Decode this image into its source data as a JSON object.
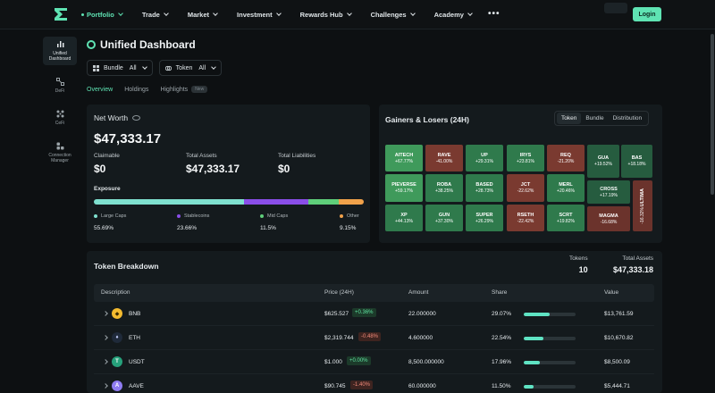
{
  "nav": {
    "items": [
      {
        "label": "Portfolio",
        "active": true
      },
      {
        "label": "Trade"
      },
      {
        "label": "Market"
      },
      {
        "label": "Investment"
      },
      {
        "label": "Rewards Hub"
      },
      {
        "label": "Challenges"
      },
      {
        "label": "Academy"
      }
    ],
    "login_label": "Login"
  },
  "sidebar": {
    "items": [
      {
        "label": "Unified Dashboard",
        "icon": "bar-chart-icon",
        "active": true
      },
      {
        "label": "DeFi",
        "icon": "defi-icon"
      },
      {
        "label": "CeFi",
        "icon": "cefi-icon"
      },
      {
        "label": "Connection Manager",
        "icon": "connection-icon"
      }
    ]
  },
  "header": {
    "title": "Unified Dashboard",
    "filters": {
      "bundle_label": "Bundle",
      "bundle_value": "All",
      "token_label": "Token",
      "token_value": "All"
    },
    "tabs": [
      "Overview",
      "Holdings",
      "Highlights"
    ],
    "highlights_badge": "New"
  },
  "net_worth": {
    "label": "Net Worth",
    "value": "$47,333.17",
    "claimable_label": "Claimable",
    "claimable": "$0",
    "total_assets_label": "Total Assets",
    "total_assets": "$47,333.17",
    "total_liabilities_label": "Total Liabilities",
    "total_liabilities": "$0",
    "exposure_label": "Exposure",
    "exposure": [
      {
        "label": "Large Caps",
        "pct": "55.69%",
        "value": 55.69,
        "color": "#7fe0cf"
      },
      {
        "label": "Stablecoins",
        "pct": "23.66%",
        "value": 23.66,
        "color": "#8a4ee8"
      },
      {
        "label": "Mid Caps",
        "pct": "11.5%",
        "value": 11.5,
        "color": "#5fcf7a"
      },
      {
        "label": "Other",
        "pct": "9.15%",
        "value": 9.15,
        "color": "#f0a14a"
      }
    ]
  },
  "gainers_losers": {
    "title": "Gainers & Losers (24H)",
    "segments": [
      "Token",
      "Bundle",
      "Distribution"
    ],
    "active_segment": "Token",
    "tiles": [
      {
        "symbol": "AITECH",
        "change": "+67.77%"
      },
      {
        "symbol": "RAVE",
        "change": "-41.00%"
      },
      {
        "symbol": "UP",
        "change": "+29.31%"
      },
      {
        "symbol": "IRYS",
        "change": "+23.81%"
      },
      {
        "symbol": "REQ",
        "change": "-21.20%"
      },
      {
        "symbol": "GUA",
        "change": "+19.52%"
      },
      {
        "symbol": "BAS",
        "change": "+18.18%"
      },
      {
        "symbol": "PIEVERSE",
        "change": "+59.17%"
      },
      {
        "symbol": "ROBA",
        "change": "+38.25%"
      },
      {
        "symbol": "BASED",
        "change": "+28.73%"
      },
      {
        "symbol": "JCT",
        "change": "-22.62%"
      },
      {
        "symbol": "MERL",
        "change": "+20.46%"
      },
      {
        "symbol": "CROSS",
        "change": "+17.19%"
      },
      {
        "symbol": "ULTIMA",
        "change": "-16.32%"
      },
      {
        "symbol": "XP",
        "change": "+44.13%"
      },
      {
        "symbol": "GUN",
        "change": "+37.30%"
      },
      {
        "symbol": "SUPER",
        "change": "+26.29%"
      },
      {
        "symbol": "RSETH",
        "change": "-22.42%"
      },
      {
        "symbol": "SCRT",
        "change": "+19.82%"
      },
      {
        "symbol": "MAGMA",
        "change": "-16.68%"
      }
    ]
  },
  "token_breakdown": {
    "title": "Token Breakdown",
    "tokens_label": "Tokens",
    "tokens_count": "10",
    "total_assets_label": "Total Assets",
    "total_assets": "$47,333.18",
    "columns": [
      "Description",
      "Price (24H)",
      "Amount",
      "Share",
      "Value"
    ],
    "rows": [
      {
        "symbol": "BNB",
        "price": "$625.527",
        "change": "+0.36%",
        "dir": "up",
        "amount": "22.000000",
        "share": "29.07%",
        "share_value": 29.07,
        "value": "$13,761.59",
        "icon_color": "#f3ba2f",
        "icon_glyph": "◆"
      },
      {
        "symbol": "ETH",
        "price": "$2,319.744",
        "change": "-0.48%",
        "dir": "down",
        "amount": "4.600000",
        "share": "22.54%",
        "share_value": 22.54,
        "value": "$10,670.82",
        "icon_color": "#1f2a3a",
        "icon_glyph": "♦"
      },
      {
        "symbol": "USDT",
        "price": "$1.000",
        "change": "+0.00%",
        "dir": "up",
        "amount": "8,500.000000",
        "share": "17.96%",
        "share_value": 17.96,
        "value": "$8,500.09",
        "icon_color": "#26a17b",
        "icon_glyph": "T"
      },
      {
        "symbol": "AAVE",
        "price": "$90.745",
        "change": "-1.40%",
        "dir": "down",
        "amount": "60.000000",
        "share": "11.50%",
        "share_value": 11.5,
        "value": "$5,444.71",
        "icon_color": "#8f7cf2",
        "icon_glyph": "A"
      }
    ]
  }
}
